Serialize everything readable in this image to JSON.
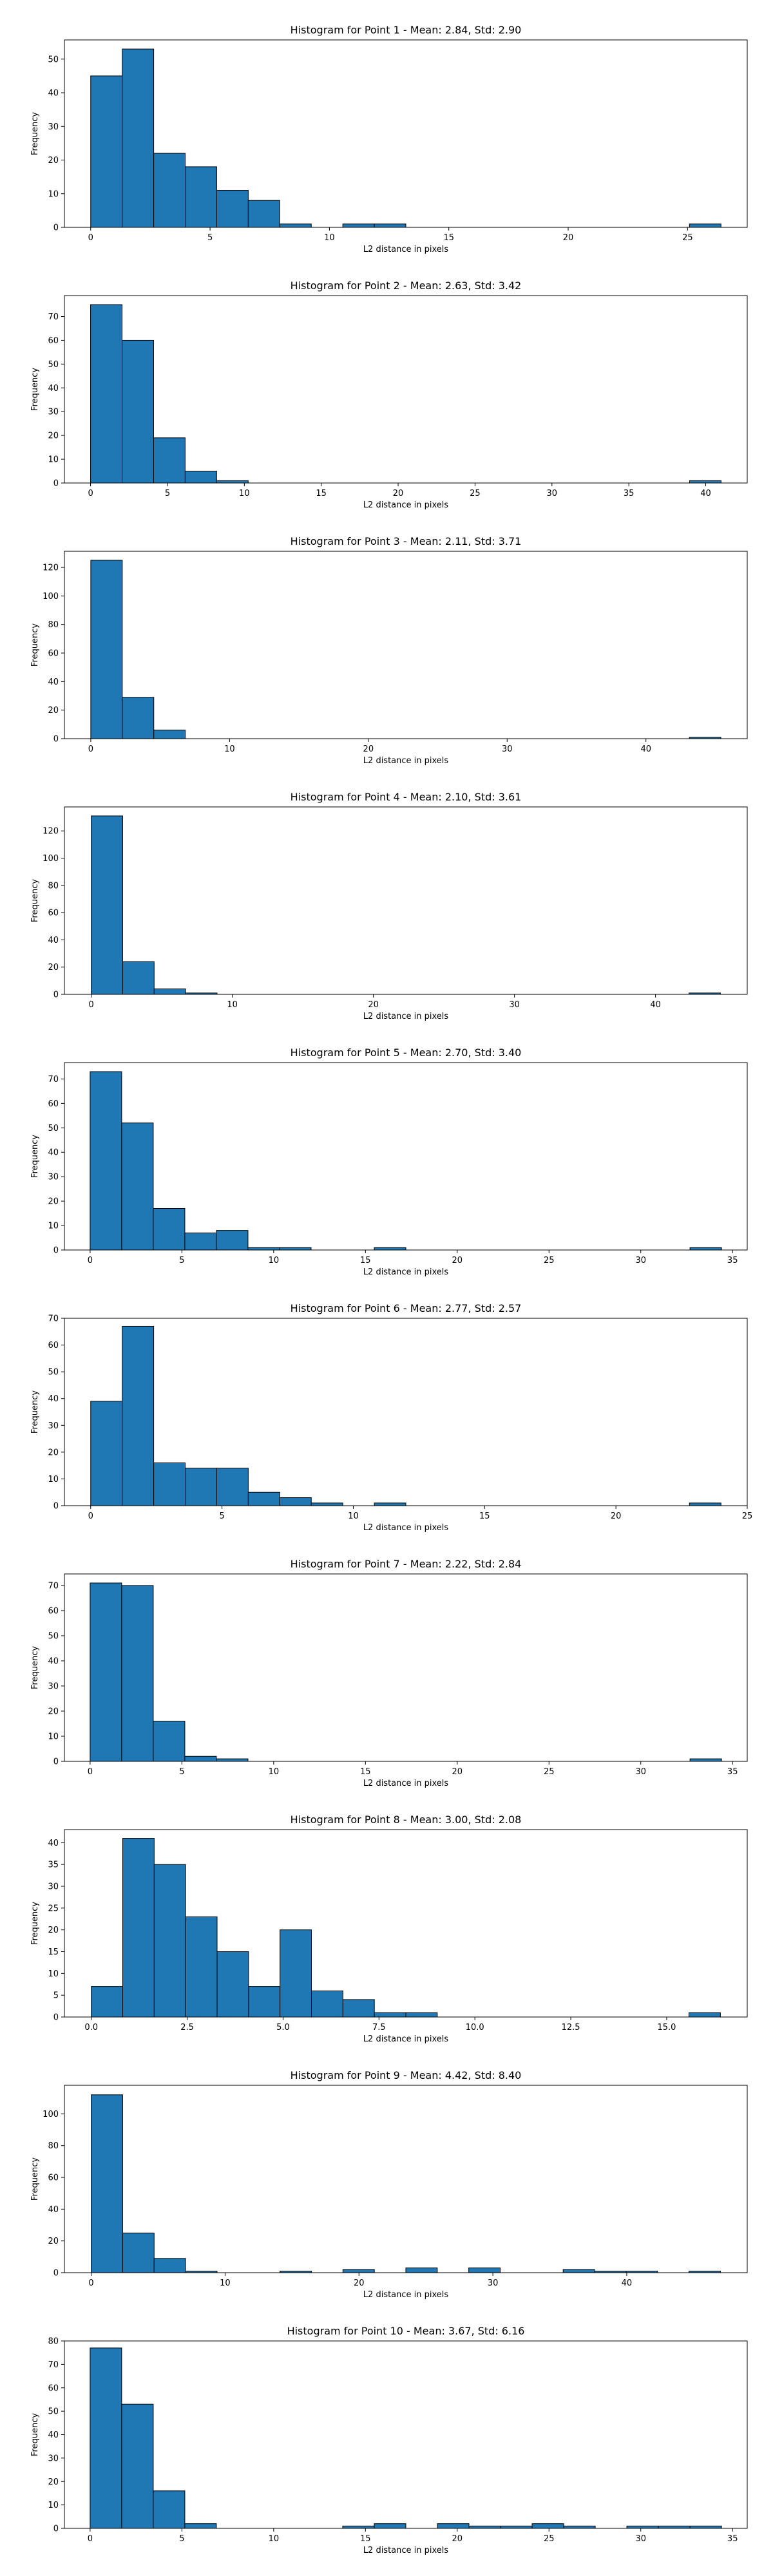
{
  "style": {
    "bar_color": "#1f77b4",
    "edge_color": "#000000"
  },
  "chart_data": [
    {
      "type": "bar",
      "title": "Histogram for Point 1 - Mean: 2.84, Std: 2.90",
      "xlabel": "L2 distance in pixels",
      "ylabel": "Frequency",
      "bin_edges": [
        0.0,
        1.32,
        2.64,
        3.96,
        5.28,
        6.6,
        7.92,
        9.24,
        10.56,
        11.88,
        13.2,
        14.52,
        15.84,
        17.16,
        18.48,
        19.8,
        21.12,
        22.44,
        23.76,
        25.08,
        26.4
      ],
      "counts": [
        45,
        53,
        22,
        18,
        11,
        8,
        1,
        0,
        1,
        1,
        0,
        0,
        0,
        0,
        0,
        0,
        0,
        0,
        0,
        1
      ],
      "xlim": [
        -1.1,
        27.5
      ],
      "ylim": [
        0,
        55.7
      ],
      "xticks": [
        0,
        5,
        10,
        15,
        20,
        25
      ],
      "yticks": [
        0,
        10,
        20,
        30,
        40,
        50
      ],
      "grid": false
    },
    {
      "type": "bar",
      "title": "Histogram for Point 2 - Mean: 2.63, Std: 3.42",
      "xlabel": "L2 distance in pixels",
      "ylabel": "Frequency",
      "bin_edges": [
        0.0,
        2.05,
        4.1,
        6.15,
        8.2,
        10.25,
        12.3,
        14.35,
        16.4,
        18.45,
        20.5,
        22.55,
        24.6,
        26.65,
        28.7,
        30.75,
        32.8,
        34.85,
        36.9,
        38.95,
        41.0
      ],
      "counts": [
        75,
        60,
        19,
        5,
        1,
        0,
        0,
        0,
        0,
        0,
        0,
        0,
        0,
        0,
        0,
        0,
        0,
        0,
        0,
        1
      ],
      "xlim": [
        -1.7,
        42.7
      ],
      "ylim": [
        0,
        78.8
      ],
      "xticks": [
        0,
        5,
        10,
        15,
        20,
        25,
        30,
        35,
        40
      ],
      "yticks": [
        0,
        10,
        20,
        30,
        40,
        50,
        60,
        70
      ],
      "grid": false
    },
    {
      "type": "bar",
      "title": "Histogram for Point 3 - Mean: 2.11, Std: 3.71",
      "xlabel": "L2 distance in pixels",
      "ylabel": "Frequency",
      "bin_edges": [
        0.0,
        2.27,
        4.54,
        6.81,
        9.08,
        11.35,
        13.62,
        15.89,
        18.16,
        20.43,
        22.7,
        24.97,
        27.24,
        29.51,
        31.78,
        34.05,
        36.32,
        38.59,
        40.86,
        43.13,
        45.4
      ],
      "counts": [
        125,
        29,
        6,
        0,
        0,
        0,
        0,
        0,
        0,
        0,
        0,
        0,
        0,
        0,
        0,
        0,
        0,
        0,
        0,
        1
      ],
      "xlim": [
        -1.9,
        47.3
      ],
      "ylim": [
        0,
        131.3
      ],
      "xticks": [
        0,
        10,
        20,
        30,
        40
      ],
      "yticks": [
        0,
        20,
        40,
        60,
        80,
        100,
        120
      ],
      "grid": false
    },
    {
      "type": "bar",
      "title": "Histogram for Point 4 - Mean: 2.10, Std: 3.61",
      "xlabel": "L2 distance in pixels",
      "ylabel": "Frequency",
      "bin_edges": [
        0.0,
        2.23,
        4.46,
        6.69,
        8.92,
        11.15,
        13.38,
        15.61,
        17.84,
        20.07,
        22.3,
        24.53,
        26.76,
        28.99,
        31.22,
        33.45,
        35.68,
        37.91,
        40.14,
        42.37,
        44.6
      ],
      "counts": [
        131,
        24,
        4,
        1,
        0,
        0,
        0,
        0,
        0,
        0,
        0,
        0,
        0,
        0,
        0,
        0,
        0,
        0,
        0,
        1
      ],
      "xlim": [
        -1.9,
        46.5
      ],
      "ylim": [
        0,
        137.6
      ],
      "xticks": [
        0,
        10,
        20,
        30,
        40
      ],
      "yticks": [
        0,
        20,
        40,
        60,
        80,
        100,
        120
      ],
      "grid": false
    },
    {
      "type": "bar",
      "title": "Histogram for Point 5 - Mean: 2.70, Std: 3.40",
      "xlabel": "L2 distance in pixels",
      "ylabel": "Frequency",
      "bin_edges": [
        0.0,
        1.72,
        3.44,
        5.16,
        6.88,
        8.6,
        10.32,
        12.04,
        13.76,
        15.48,
        17.2,
        18.92,
        20.64,
        22.36,
        24.08,
        25.8,
        27.52,
        29.24,
        30.96,
        32.68,
        34.4
      ],
      "counts": [
        73,
        52,
        17,
        7,
        8,
        1,
        1,
        0,
        0,
        1,
        0,
        0,
        0,
        0,
        0,
        0,
        0,
        0,
        0,
        1
      ],
      "xlim": [
        -1.4,
        35.8
      ],
      "ylim": [
        0,
        76.7
      ],
      "xticks": [
        0,
        5,
        10,
        15,
        20,
        25,
        30,
        35
      ],
      "yticks": [
        0,
        10,
        20,
        30,
        40,
        50,
        60,
        70
      ],
      "grid": false
    },
    {
      "type": "bar",
      "title": "Histogram for Point 6 - Mean: 2.77, Std: 2.57",
      "xlabel": "L2 distance in pixels",
      "ylabel": "Frequency",
      "bin_edges": [
        0.0,
        1.2,
        2.4,
        3.6,
        4.8,
        6.0,
        7.2,
        8.4,
        9.6,
        10.8,
        12.0,
        13.2,
        14.4,
        15.6,
        16.8,
        18.0,
        19.2,
        20.4,
        21.6,
        22.8,
        24.0
      ],
      "counts": [
        39,
        67,
        16,
        14,
        14,
        5,
        3,
        1,
        0,
        1,
        0,
        0,
        0,
        0,
        0,
        0,
        0,
        0,
        0,
        1
      ],
      "xlim": [
        -1.0,
        25.0
      ],
      "ylim": [
        0,
        70.0
      ],
      "xticks": [
        0,
        5,
        10,
        15,
        20,
        25
      ],
      "yticks": [
        0,
        10,
        20,
        30,
        40,
        50,
        60,
        70
      ],
      "grid": false
    },
    {
      "type": "bar",
      "title": "Histogram for Point 7 - Mean: 2.22, Std: 2.84",
      "xlabel": "L2 distance in pixels",
      "ylabel": "Frequency",
      "bin_edges": [
        0.0,
        1.72,
        3.44,
        5.16,
        6.88,
        8.6,
        10.32,
        12.04,
        13.76,
        15.48,
        17.2,
        18.92,
        20.64,
        22.36,
        24.08,
        25.8,
        27.52,
        29.24,
        30.96,
        32.68,
        34.4
      ],
      "counts": [
        71,
        70,
        16,
        2,
        1,
        0,
        0,
        0,
        0,
        0,
        0,
        0,
        0,
        0,
        0,
        0,
        0,
        0,
        0,
        1
      ],
      "xlim": [
        -1.4,
        35.8
      ],
      "ylim": [
        0,
        74.6
      ],
      "xticks": [
        0,
        5,
        10,
        15,
        20,
        25,
        30,
        35
      ],
      "yticks": [
        0,
        10,
        20,
        30,
        40,
        50,
        60,
        70
      ],
      "grid": false
    },
    {
      "type": "bar",
      "title": "Histogram for Point 8 - Mean: 3.00, Std: 2.08",
      "xlabel": "L2 distance in pixels",
      "ylabel": "Frequency",
      "bin_edges": [
        0.0,
        0.82,
        1.64,
        2.46,
        3.28,
        4.1,
        4.92,
        5.74,
        6.56,
        7.38,
        8.2,
        9.02,
        9.84,
        10.66,
        11.48,
        12.3,
        13.12,
        13.94,
        14.76,
        15.58,
        16.4
      ],
      "counts": [
        7,
        41,
        35,
        23,
        15,
        7,
        20,
        6,
        4,
        1,
        1,
        0,
        0,
        0,
        0,
        0,
        0,
        0,
        0,
        1
      ],
      "xlim": [
        -0.7,
        17.1
      ],
      "ylim": [
        0,
        43.0
      ],
      "xticks": [
        0.0,
        2.5,
        5.0,
        7.5,
        10.0,
        12.5,
        15.0
      ],
      "xtick_labels": [
        "0.0",
        "2.5",
        "5.0",
        "7.5",
        "10.0",
        "12.5",
        "15.0"
      ],
      "yticks": [
        0,
        5,
        10,
        15,
        20,
        25,
        30,
        35,
        40
      ],
      "grid": false
    },
    {
      "type": "bar",
      "title": "Histogram for Point 9 - Mean: 4.42, Std: 8.40",
      "xlabel": "L2 distance in pixels",
      "ylabel": "Frequency",
      "bin_edges": [
        0.0,
        2.35,
        4.7,
        7.05,
        9.4,
        11.75,
        14.1,
        16.45,
        18.8,
        21.15,
        23.5,
        25.85,
        28.2,
        30.55,
        32.9,
        35.25,
        37.6,
        39.95,
        42.3,
        44.65,
        47.0
      ],
      "counts": [
        112,
        25,
        9,
        1,
        0,
        0,
        1,
        0,
        2,
        0,
        3,
        0,
        3,
        0,
        0,
        2,
        1,
        1,
        0,
        1
      ],
      "xlim": [
        -2.0,
        49.0
      ],
      "ylim": [
        0,
        118.0
      ],
      "xticks": [
        0,
        10,
        20,
        30,
        40
      ],
      "yticks": [
        0,
        20,
        40,
        60,
        80,
        100
      ],
      "grid": false
    },
    {
      "type": "bar",
      "title": "Histogram for Point 10 - Mean: 3.67, Std: 6.16",
      "xlabel": "L2 distance in pixels",
      "ylabel": "Frequency",
      "bin_edges": [
        0.0,
        1.72,
        3.44,
        5.16,
        6.88,
        8.6,
        10.32,
        12.04,
        13.76,
        15.48,
        17.2,
        18.92,
        20.64,
        22.36,
        24.08,
        25.8,
        27.52,
        29.24,
        30.96,
        32.68,
        34.4
      ],
      "counts": [
        77,
        53,
        16,
        2,
        0,
        0,
        0,
        0,
        1,
        2,
        0,
        2,
        1,
        1,
        2,
        1,
        0,
        1,
        1,
        1
      ],
      "xlim": [
        -1.4,
        35.8
      ],
      "ylim": [
        0,
        80.0
      ],
      "xticks": [
        0,
        5,
        10,
        15,
        20,
        25,
        30,
        35
      ],
      "yticks": [
        0,
        10,
        20,
        30,
        40,
        50,
        60,
        70,
        80
      ],
      "grid": false
    }
  ]
}
